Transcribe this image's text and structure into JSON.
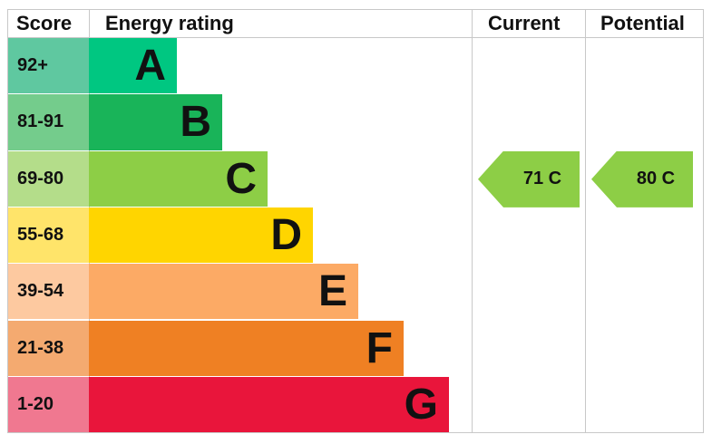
{
  "chart_data": {
    "type": "bar",
    "headers": {
      "score": "Score",
      "rating": "Energy rating",
      "current": "Current",
      "potential": "Potential"
    },
    "bands": [
      {
        "letter": "A",
        "range": "92+",
        "color": "#00c781",
        "score_color": "#5fc8a0"
      },
      {
        "letter": "B",
        "range": "81-91",
        "color": "#19b459",
        "score_color": "#74cc8c"
      },
      {
        "letter": "C",
        "range": "69-80",
        "color": "#8dce46",
        "score_color": "#b4dd8a"
      },
      {
        "letter": "D",
        "range": "55-68",
        "color": "#ffd500",
        "score_color": "#ffe46a"
      },
      {
        "letter": "E",
        "range": "39-54",
        "color": "#fcaa65",
        "score_color": "#fdc9a0"
      },
      {
        "letter": "F",
        "range": "21-38",
        "color": "#ef8023",
        "score_color": "#f4aa70"
      },
      {
        "letter": "G",
        "range": "1-20",
        "color": "#e9153b",
        "score_color": "#f07890"
      }
    ],
    "current": {
      "value": 71,
      "band": "C",
      "label": "71  C",
      "color": "#8dce46"
    },
    "potential": {
      "value": 80,
      "band": "C",
      "label": "80  C",
      "color": "#8dce46"
    }
  }
}
